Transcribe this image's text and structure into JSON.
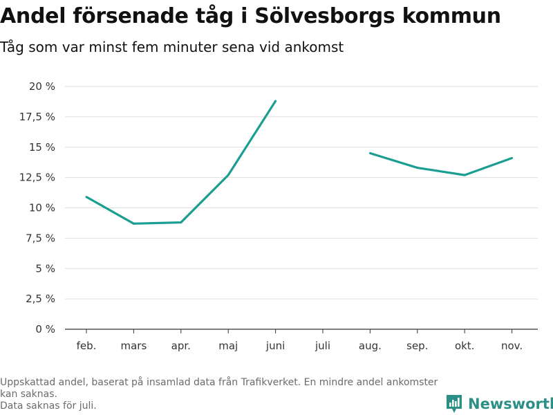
{
  "header": {
    "title": "Andel försenade tåg i Sölvesborgs kommun",
    "subtitle": "Tåg som var minst fem minuter sena vid ankomst"
  },
  "footer": {
    "note_line1": "Uppskattad andel, baserat på insamlad data från Trafikverket. En mindre andel ankomster kan saknas.",
    "note_line2": "Data saknas för juli.",
    "brand_name": "Newsworthy"
  },
  "colors": {
    "line": "#1a9e91",
    "grid": "#dddddd",
    "axis": "#333333",
    "brand": "#2b8f86"
  },
  "chart_data": {
    "type": "line",
    "title": "Andel försenade tåg i Sölvesborgs kommun",
    "subtitle": "Tåg som var minst fem minuter sena vid ankomst",
    "xlabel": "",
    "ylabel": "",
    "categories": [
      "feb.",
      "mars",
      "apr.",
      "maj",
      "juni",
      "juli",
      "aug.",
      "sep.",
      "okt.",
      "nov."
    ],
    "series": [
      {
        "name": "Andel försenade tåg",
        "values": [
          10.9,
          8.7,
          8.8,
          12.7,
          18.8,
          null,
          14.5,
          13.3,
          12.7,
          14.1
        ]
      }
    ],
    "ylim": [
      0,
      20
    ],
    "yticks": [
      0,
      2.5,
      5,
      7.5,
      10,
      12.5,
      15,
      17.5,
      20
    ],
    "ytick_labels": [
      "0 %",
      "2,5 %",
      "5 %",
      "7,5 %",
      "10 %",
      "12,5 %",
      "15 %",
      "17,5 %",
      "20 %"
    ],
    "grid": true,
    "legend": "none"
  }
}
